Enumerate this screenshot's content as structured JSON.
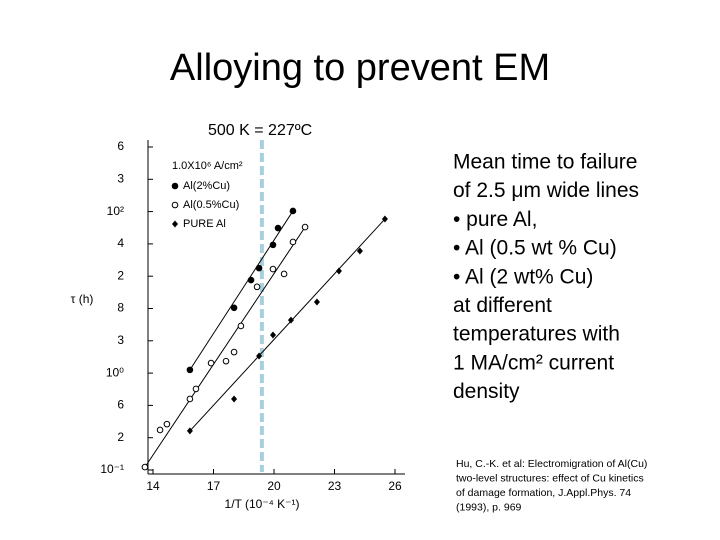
{
  "title": "Alloying to prevent EM",
  "annotation": "500 K = 227ºC",
  "description": [
    "Mean time to failure",
    "of 2.5 μm wide lines",
    "• pure Al,",
    "• Al (0.5 wt % Cu)",
    "• Al (2 wt% Cu)",
    "at different",
    "temperatures with",
    "1 MA/cm² current",
    "density"
  ],
  "reference": [
    "Hu, C.-K. et al: Electromigration of Al(Cu)",
    "two-level structures: effect of Cu kinetics",
    "of damage formation, J.Appl.Phys. 74",
    "(1993), p. 969"
  ],
  "chart_data": {
    "type": "scatter",
    "legend_title": "1.0X10⁶ A/cm²",
    "xlabel": "1/T (10⁻⁴ K⁻¹)",
    "ylabel": "τ (h)",
    "xlim": [
      14,
      26
    ],
    "xticks": [
      14,
      17,
      20,
      23,
      26
    ],
    "ylim": [
      0,
      10
    ],
    "yticks": [
      {
        "value": 0,
        "label": "10⁻¹"
      },
      {
        "value": 1,
        "label": "2"
      },
      {
        "value": 2,
        "label": "6"
      },
      {
        "value": 3,
        "label": "10⁰"
      },
      {
        "value": 4,
        "label": "3"
      },
      {
        "value": 5,
        "label": "8"
      },
      {
        "value": 6,
        "label": "2"
      },
      {
        "value": 7,
        "label": "4"
      },
      {
        "value": 8,
        "label": "10²"
      },
      {
        "value": 9,
        "label": "3"
      },
      {
        "value": 10,
        "label": "6"
      }
    ],
    "vline": 19.4,
    "vline_color": "#a8d0dc",
    "series": [
      {
        "name": "Al(2%Cu)",
        "marker": "filled-circle",
        "color": "#000000",
        "x": [
          15.83,
          18.02,
          18.86,
          19.26,
          19.95,
          20.2,
          20.94
        ],
        "values": [
          3.1,
          5.02,
          5.88,
          6.25,
          6.97,
          7.49,
          8.02
        ]
      },
      {
        "name": "Al(0.5%Cu)",
        "marker": "open-circle",
        "color": "#000000",
        "x": [
          13.6,
          14.35,
          14.69,
          15.83,
          16.13,
          16.88,
          17.62,
          18.02,
          18.36,
          19.16,
          19.95,
          20.5,
          20.94,
          21.54
        ],
        "values": [
          0.09,
          1.24,
          1.42,
          2.2,
          2.51,
          3.31,
          3.37,
          3.65,
          4.46,
          5.67,
          6.22,
          6.07,
          7.06,
          7.52
        ]
      },
      {
        "name": "PURE Al",
        "marker": "diamond",
        "color": "#000000",
        "x": [
          15.83,
          18.02,
          19.26,
          19.95,
          20.84,
          22.13,
          23.22,
          24.26,
          25.5
        ],
        "values": [
          1.21,
          2.2,
          3.53,
          4.18,
          4.64,
          5.2,
          6.16,
          6.78,
          7.77
        ]
      }
    ]
  }
}
